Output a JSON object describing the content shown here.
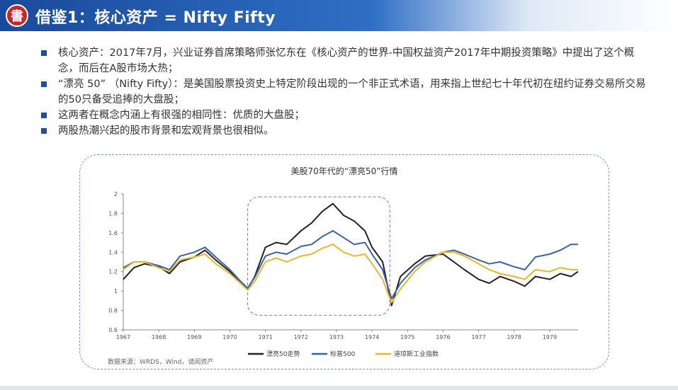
{
  "header": {
    "logo_text": "書",
    "title": "借鉴1：核心资产 = Nifty Fifty"
  },
  "bullets": [
    "核心资产：2017年7月，兴业证券首席策略师张忆东在《核心资产的世界-中国权益资产2017年中期投资策略》中提出了这个概念，而后在A股市场大热；",
    "“漂亮 50” （Nifty Fifty）：是美国股票投资史上特定阶段出现的一个非正式术语，用来指上世纪七十年代初在纽约证券交易所交易的50只备受追捧的大盘股；",
    "这两者在概念内涵上有很强的相同性：优质的大盘股；",
    "两股热潮兴起的股市背景和宏观背景也很相似。"
  ],
  "chart_data": {
    "type": "line",
    "title": "美股70年代的“漂亮50”行情",
    "source": "数据来源：WRDS，Wind，请阅资产",
    "x_ticks": [
      "1967",
      "1968",
      "1969",
      "1970",
      "1971",
      "1972",
      "1973",
      "1974",
      "1975",
      "1976",
      "1977",
      "1978",
      "1979"
    ],
    "y_ticks": [
      "2",
      "1.8",
      "1.6",
      "1.4",
      "1.2",
      "1",
      "0.8",
      "0.6"
    ],
    "ylim": [
      0.6,
      2.0
    ],
    "xlim": [
      1967,
      1979.8
    ],
    "grid": false,
    "legend_position": "bottom",
    "highlight_range": [
      1970.5,
      1974.5
    ],
    "series": [
      {
        "name": "漂亮50走势",
        "color": "#222222",
        "points": [
          [
            1967,
            1.12
          ],
          [
            1967.3,
            1.24
          ],
          [
            1967.6,
            1.28
          ],
          [
            1968,
            1.25
          ],
          [
            1968.3,
            1.18
          ],
          [
            1968.6,
            1.3
          ],
          [
            1969,
            1.35
          ],
          [
            1969.3,
            1.42
          ],
          [
            1969.6,
            1.32
          ],
          [
            1970,
            1.2
          ],
          [
            1970.3,
            1.08
          ],
          [
            1970.5,
            1.02
          ],
          [
            1970.7,
            1.15
          ],
          [
            1971,
            1.45
          ],
          [
            1971.3,
            1.5
          ],
          [
            1971.6,
            1.48
          ],
          [
            1972,
            1.62
          ],
          [
            1972.3,
            1.7
          ],
          [
            1972.6,
            1.82
          ],
          [
            1972.9,
            1.9
          ],
          [
            1973.2,
            1.78
          ],
          [
            1973.5,
            1.72
          ],
          [
            1973.8,
            1.62
          ],
          [
            1974,
            1.45
          ],
          [
            1974.3,
            1.3
          ],
          [
            1974.55,
            0.85
          ],
          [
            1974.8,
            1.15
          ],
          [
            1975.2,
            1.28
          ],
          [
            1975.5,
            1.36
          ],
          [
            1976,
            1.38
          ],
          [
            1976.3,
            1.3
          ],
          [
            1976.6,
            1.22
          ],
          [
            1977,
            1.12
          ],
          [
            1977.3,
            1.08
          ],
          [
            1977.6,
            1.15
          ],
          [
            1978,
            1.1
          ],
          [
            1978.3,
            1.05
          ],
          [
            1978.6,
            1.15
          ],
          [
            1979,
            1.12
          ],
          [
            1979.3,
            1.18
          ],
          [
            1979.6,
            1.15
          ],
          [
            1979.8,
            1.2
          ]
        ]
      },
      {
        "name": "标普500",
        "color": "#3a62a8",
        "points": [
          [
            1967,
            1.24
          ],
          [
            1967.3,
            1.3
          ],
          [
            1967.6,
            1.3
          ],
          [
            1968,
            1.26
          ],
          [
            1968.3,
            1.22
          ],
          [
            1968.6,
            1.36
          ],
          [
            1969,
            1.4
          ],
          [
            1969.3,
            1.45
          ],
          [
            1969.6,
            1.35
          ],
          [
            1970,
            1.22
          ],
          [
            1970.3,
            1.1
          ],
          [
            1970.5,
            1.03
          ],
          [
            1970.7,
            1.14
          ],
          [
            1971,
            1.36
          ],
          [
            1971.3,
            1.4
          ],
          [
            1971.6,
            1.38
          ],
          [
            1972,
            1.46
          ],
          [
            1972.3,
            1.48
          ],
          [
            1972.6,
            1.56
          ],
          [
            1972.9,
            1.62
          ],
          [
            1973.2,
            1.55
          ],
          [
            1973.5,
            1.48
          ],
          [
            1973.8,
            1.5
          ],
          [
            1974,
            1.38
          ],
          [
            1974.3,
            1.22
          ],
          [
            1974.55,
            0.92
          ],
          [
            1974.8,
            1.08
          ],
          [
            1975.2,
            1.24
          ],
          [
            1975.5,
            1.32
          ],
          [
            1976,
            1.4
          ],
          [
            1976.3,
            1.42
          ],
          [
            1976.6,
            1.38
          ],
          [
            1977,
            1.32
          ],
          [
            1977.3,
            1.28
          ],
          [
            1977.6,
            1.3
          ],
          [
            1978,
            1.25
          ],
          [
            1978.3,
            1.22
          ],
          [
            1978.6,
            1.35
          ],
          [
            1979,
            1.38
          ],
          [
            1979.3,
            1.42
          ],
          [
            1979.6,
            1.48
          ],
          [
            1979.8,
            1.48
          ]
        ]
      },
      {
        "name": "道琼斯工业指数",
        "color": "#e8b72e",
        "points": [
          [
            1967,
            1.22
          ],
          [
            1967.3,
            1.3
          ],
          [
            1967.6,
            1.3
          ],
          [
            1968,
            1.24
          ],
          [
            1968.3,
            1.2
          ],
          [
            1968.6,
            1.32
          ],
          [
            1969,
            1.35
          ],
          [
            1969.3,
            1.38
          ],
          [
            1969.6,
            1.28
          ],
          [
            1970,
            1.18
          ],
          [
            1970.3,
            1.08
          ],
          [
            1970.5,
            1.01
          ],
          [
            1970.7,
            1.1
          ],
          [
            1971,
            1.3
          ],
          [
            1971.3,
            1.34
          ],
          [
            1971.6,
            1.3
          ],
          [
            1972,
            1.36
          ],
          [
            1972.3,
            1.38
          ],
          [
            1972.6,
            1.44
          ],
          [
            1972.9,
            1.48
          ],
          [
            1973.2,
            1.4
          ],
          [
            1973.5,
            1.36
          ],
          [
            1973.8,
            1.38
          ],
          [
            1974,
            1.28
          ],
          [
            1974.3,
            1.12
          ],
          [
            1974.55,
            0.88
          ],
          [
            1974.8,
            1.02
          ],
          [
            1975.2,
            1.2
          ],
          [
            1975.5,
            1.3
          ],
          [
            1976,
            1.4
          ],
          [
            1976.3,
            1.4
          ],
          [
            1976.6,
            1.36
          ],
          [
            1977,
            1.28
          ],
          [
            1977.3,
            1.22
          ],
          [
            1977.6,
            1.18
          ],
          [
            1978,
            1.15
          ],
          [
            1978.3,
            1.12
          ],
          [
            1978.6,
            1.22
          ],
          [
            1979,
            1.2
          ],
          [
            1979.3,
            1.24
          ],
          [
            1979.6,
            1.22
          ],
          [
            1979.8,
            1.22
          ]
        ]
      }
    ]
  }
}
